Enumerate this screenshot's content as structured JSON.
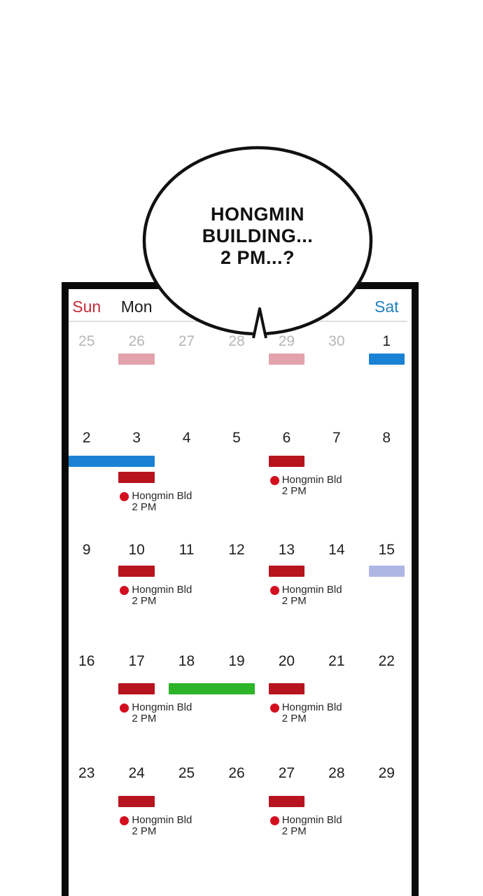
{
  "bubble": {
    "lines": [
      "HONGMIN",
      "BUILDING...",
      "2 PM...?"
    ]
  },
  "colors": {
    "sun": "#c42b3a",
    "sat": "#1f7fc0",
    "weekday": "#1a1a1a",
    "red": "#b8141f",
    "pink": "#e2a3ac",
    "blue": "#1a82d4",
    "lavender": "#aeb7e4",
    "green": "#2eb429",
    "dot": "#d30f1f"
  },
  "calendar": {
    "weekday_header": [
      {
        "label": "Sun",
        "color_key": "sun"
      },
      {
        "label": "Mon",
        "color_key": "weekday"
      },
      {
        "label": "",
        "color_key": "weekday"
      },
      {
        "label": "",
        "color_key": "weekday"
      },
      {
        "label": "",
        "color_key": "weekday"
      },
      {
        "label": "",
        "color_key": "weekday"
      },
      {
        "label": "Sat",
        "color_key": "sat"
      }
    ],
    "weeks": [
      {
        "days": [
          {
            "n": "25",
            "muted": true
          },
          {
            "n": "26",
            "muted": true
          },
          {
            "n": "27",
            "muted": true
          },
          {
            "n": "28",
            "muted": true
          },
          {
            "n": "29",
            "muted": true
          },
          {
            "n": "30",
            "muted": true
          },
          {
            "n": "1",
            "muted": false
          }
        ],
        "events": [
          {
            "col": 1,
            "span": 1,
            "color": "pink",
            "level": 0
          },
          {
            "col": 4,
            "span": 1,
            "color": "pink",
            "level": 0
          },
          {
            "col": 6,
            "span": 1,
            "color": "blue",
            "level": 0
          }
        ]
      },
      {
        "days": [
          {
            "n": "2",
            "muted": false
          },
          {
            "n": "3",
            "muted": false
          },
          {
            "n": "4",
            "muted": false
          },
          {
            "n": "5",
            "muted": false
          },
          {
            "n": "6",
            "muted": false
          },
          {
            "n": "7",
            "muted": false
          },
          {
            "n": "8",
            "muted": false
          }
        ],
        "events": [
          {
            "col": 0,
            "span": 2,
            "color": "blue",
            "level": 0
          },
          {
            "col": 1,
            "span": 1,
            "color": "red",
            "level": 1,
            "label": {
              "title": "Hongmin Bld",
              "time": "2 PM"
            }
          },
          {
            "col": 4,
            "span": 1,
            "color": "red",
            "level": 0,
            "label": {
              "title": "Hongmin Bld",
              "time": "2 PM"
            }
          }
        ]
      },
      {
        "days": [
          {
            "n": "9",
            "muted": false
          },
          {
            "n": "10",
            "muted": false
          },
          {
            "n": "11",
            "muted": false
          },
          {
            "n": "12",
            "muted": false
          },
          {
            "n": "13",
            "muted": false
          },
          {
            "n": "14",
            "muted": false
          },
          {
            "n": "15",
            "muted": false
          }
        ],
        "events": [
          {
            "col": 1,
            "span": 1,
            "color": "red",
            "level": 0,
            "label": {
              "title": "Hongmin Bld",
              "time": "2 PM"
            }
          },
          {
            "col": 4,
            "span": 1,
            "color": "red",
            "level": 0,
            "label": {
              "title": "Hongmin Bld",
              "time": "2 PM"
            }
          },
          {
            "col": 6,
            "span": 1,
            "color": "lavender",
            "level": 0
          }
        ]
      },
      {
        "days": [
          {
            "n": "16",
            "muted": false
          },
          {
            "n": "17",
            "muted": false
          },
          {
            "n": "18",
            "muted": false
          },
          {
            "n": "19",
            "muted": false
          },
          {
            "n": "20",
            "muted": false
          },
          {
            "n": "21",
            "muted": false
          },
          {
            "n": "22",
            "muted": false
          }
        ],
        "events": [
          {
            "col": 1,
            "span": 1,
            "color": "red",
            "level": 0,
            "label": {
              "title": "Hongmin Bld",
              "time": "2 PM"
            }
          },
          {
            "col": 2,
            "span": 2,
            "color": "green",
            "level": 0
          },
          {
            "col": 4,
            "span": 1,
            "color": "red",
            "level": 0,
            "label": {
              "title": "Hongmin Bld",
              "time": "2 PM"
            }
          }
        ]
      },
      {
        "days": [
          {
            "n": "23",
            "muted": false
          },
          {
            "n": "24",
            "muted": false
          },
          {
            "n": "25",
            "muted": false
          },
          {
            "n": "26",
            "muted": false
          },
          {
            "n": "27",
            "muted": false
          },
          {
            "n": "28",
            "muted": false
          },
          {
            "n": "29",
            "muted": false
          }
        ],
        "events": [
          {
            "col": 1,
            "span": 1,
            "color": "red",
            "level": 0,
            "label": {
              "title": "Hongmin Bld",
              "time": "2 PM"
            }
          },
          {
            "col": 4,
            "span": 1,
            "color": "red",
            "level": 0,
            "label": {
              "title": "Hongmin Bld",
              "time": "2 PM"
            }
          }
        ]
      }
    ]
  }
}
